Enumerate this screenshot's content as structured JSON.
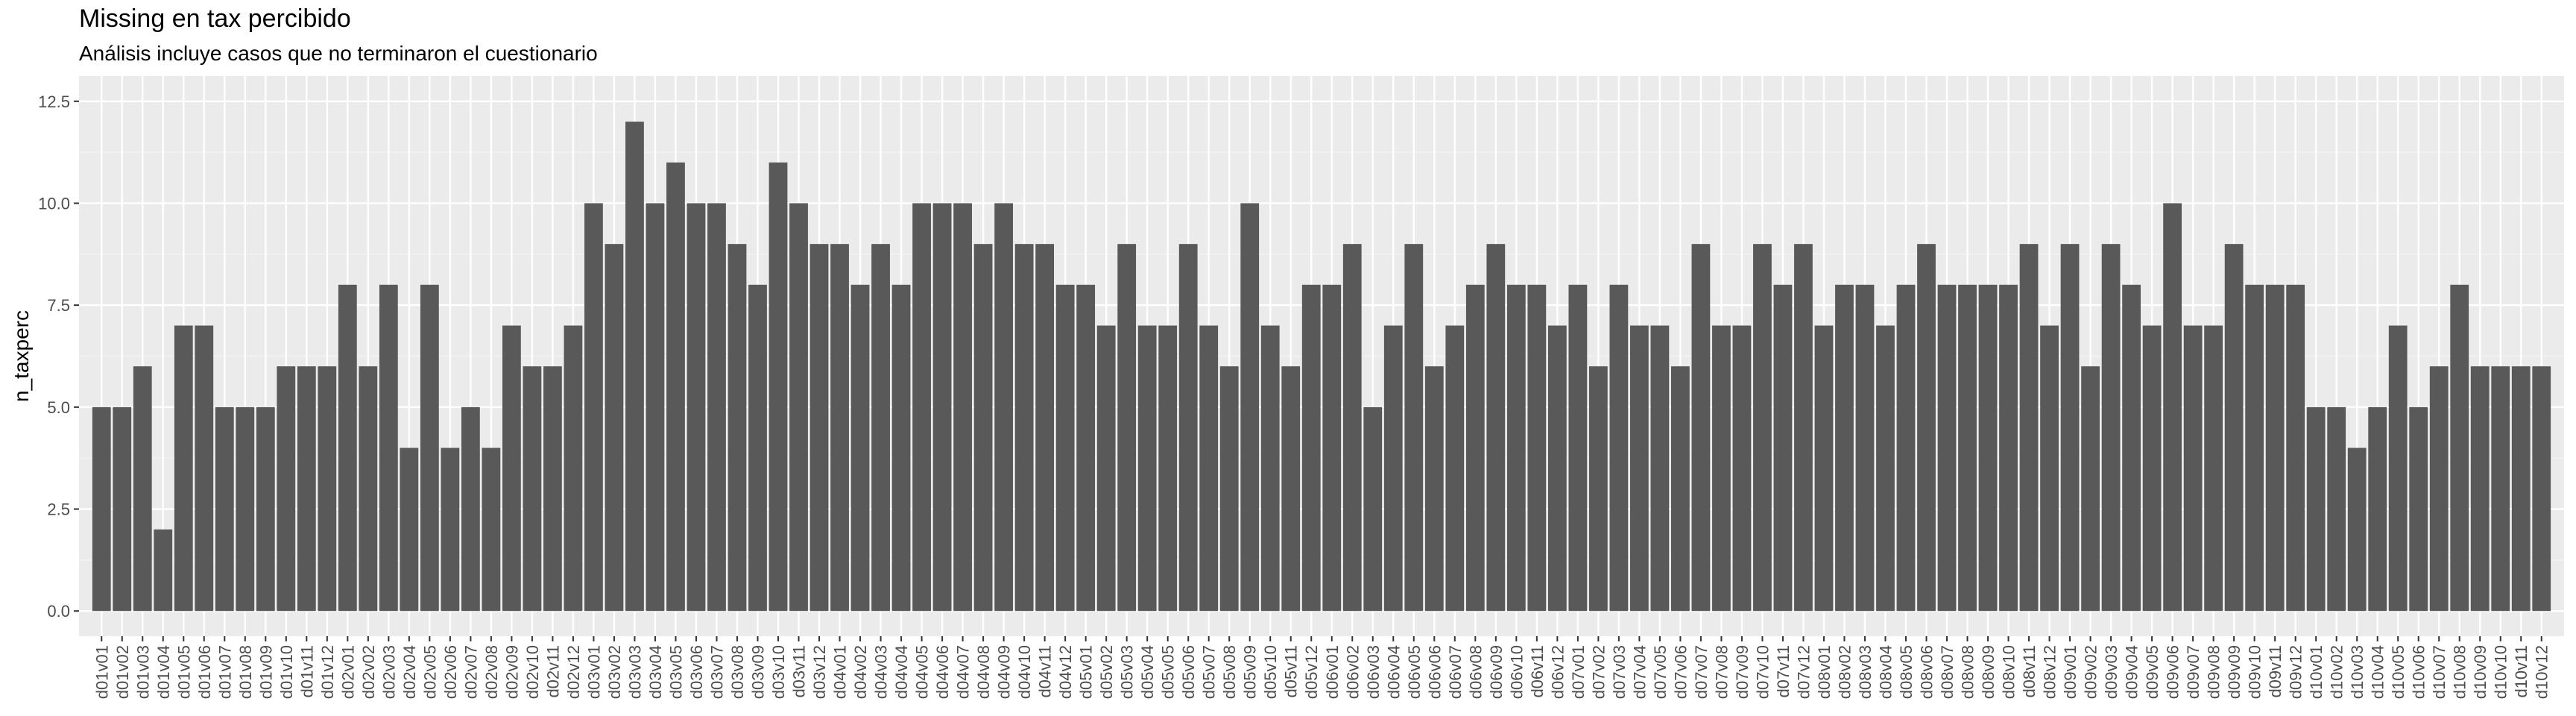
{
  "chart_data": {
    "type": "bar",
    "title": "Missing en tax percibido",
    "subtitle": "Análisis incluye casos que no terminaron el cuestionario",
    "xlabel": "",
    "ylabel": "n_taxperc",
    "ylim": [
      0,
      12.5
    ],
    "yticks": [
      "0.0",
      "2.5",
      "5.0",
      "7.5",
      "10.0",
      "12.5"
    ],
    "grid": true,
    "legend": "none",
    "bar_color": "#595959",
    "panel_background": "#ebebeb",
    "categories": [
      "d01v01",
      "d01v02",
      "d01v03",
      "d01v04",
      "d01v05",
      "d01v06",
      "d01v07",
      "d01v08",
      "d01v09",
      "d01v10",
      "d01v11",
      "d01v12",
      "d02v01",
      "d02v02",
      "d02v03",
      "d02v04",
      "d02v05",
      "d02v06",
      "d02v07",
      "d02v08",
      "d02v09",
      "d02v10",
      "d02v11",
      "d02v12",
      "d03v01",
      "d03v02",
      "d03v03",
      "d03v04",
      "d03v05",
      "d03v06",
      "d03v07",
      "d03v08",
      "d03v09",
      "d03v10",
      "d03v11",
      "d03v12",
      "d04v01",
      "d04v02",
      "d04v03",
      "d04v04",
      "d04v05",
      "d04v06",
      "d04v07",
      "d04v08",
      "d04v09",
      "d04v10",
      "d04v11",
      "d04v12",
      "d05v01",
      "d05v02",
      "d05v03",
      "d05v04",
      "d05v05",
      "d05v06",
      "d05v07",
      "d05v08",
      "d05v09",
      "d05v10",
      "d05v11",
      "d05v12",
      "d06v01",
      "d06v02",
      "d06v03",
      "d06v04",
      "d06v05",
      "d06v06",
      "d06v07",
      "d06v08",
      "d06v09",
      "d06v10",
      "d06v11",
      "d06v12",
      "d07v01",
      "d07v02",
      "d07v03",
      "d07v04",
      "d07v05",
      "d07v06",
      "d07v07",
      "d07v08",
      "d07v09",
      "d07v10",
      "d07v11",
      "d07v12",
      "d08v01",
      "d08v02",
      "d08v03",
      "d08v04",
      "d08v05",
      "d08v06",
      "d08v07",
      "d08v08",
      "d08v09",
      "d08v10",
      "d08v11",
      "d08v12",
      "d09v01",
      "d09v02",
      "d09v03",
      "d09v04",
      "d09v05",
      "d09v06",
      "d09v07",
      "d09v08",
      "d09v09",
      "d09v10",
      "d09v11",
      "d09v12",
      "d10v01",
      "d10v02",
      "d10v03",
      "d10v04",
      "d10v05",
      "d10v06",
      "d10v07",
      "d10v08",
      "d10v09",
      "d10v10",
      "d10v11",
      "d10v12"
    ],
    "values": [
      5,
      5,
      6,
      2,
      7,
      7,
      5,
      5,
      5,
      6,
      6,
      6,
      8,
      6,
      8,
      4,
      8,
      4,
      5,
      4,
      7,
      6,
      6,
      7,
      10,
      9,
      12,
      10,
      11,
      10,
      10,
      9,
      8,
      11,
      10,
      9,
      9,
      8,
      9,
      8,
      10,
      10,
      10,
      9,
      10,
      9,
      9,
      8,
      8,
      7,
      9,
      7,
      7,
      9,
      7,
      6,
      10,
      7,
      6,
      8,
      8,
      9,
      5,
      7,
      9,
      6,
      7,
      8,
      9,
      8,
      8,
      7,
      8,
      6,
      8,
      7,
      7,
      6,
      9,
      7,
      7,
      9,
      8,
      9,
      7,
      8,
      8,
      7,
      8,
      9,
      8,
      8,
      8,
      8,
      9,
      7,
      9,
      6,
      9,
      8,
      7,
      10,
      7,
      7,
      9,
      8,
      8,
      8,
      5,
      5,
      4,
      5,
      7,
      5,
      6,
      8,
      6,
      6,
      6,
      6
    ]
  }
}
